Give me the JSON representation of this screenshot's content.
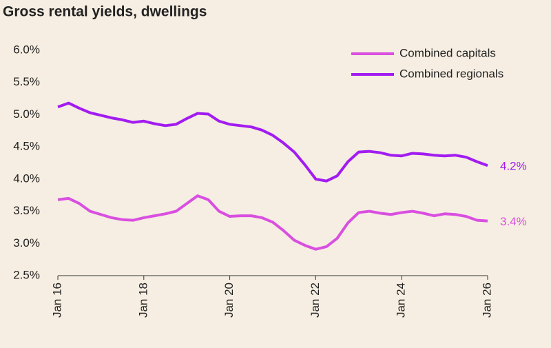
{
  "chart_data": {
    "type": "line",
    "title": "Gross rental yields, dwellings",
    "x": [
      2016,
      2016.25,
      2016.5,
      2016.75,
      2017,
      2017.25,
      2017.5,
      2017.75,
      2018,
      2018.25,
      2018.5,
      2018.75,
      2019,
      2019.25,
      2019.5,
      2019.75,
      2020,
      2020.25,
      2020.5,
      2020.75,
      2021,
      2021.25,
      2021.5,
      2021.75,
      2022,
      2022.25,
      2022.5,
      2022.75,
      2023,
      2023.25,
      2023.5,
      2023.75,
      2024,
      2024.25,
      2024.5,
      2024.75,
      2025,
      2025.25,
      2025.5,
      2025.75,
      2026
    ],
    "series": [
      {
        "name": "Combined capitals",
        "color": "#d94fe0",
        "end_label": "3.4%",
        "values": [
          3.68,
          3.7,
          3.62,
          3.5,
          3.45,
          3.4,
          3.37,
          3.36,
          3.4,
          3.43,
          3.46,
          3.5,
          3.62,
          3.74,
          3.68,
          3.5,
          3.42,
          3.43,
          3.43,
          3.4,
          3.33,
          3.2,
          3.05,
          2.97,
          2.91,
          2.95,
          3.08,
          3.32,
          3.48,
          3.5,
          3.47,
          3.45,
          3.48,
          3.5,
          3.47,
          3.43,
          3.46,
          3.45,
          3.42,
          3.36,
          3.35
        ]
      },
      {
        "name": "Combined regionals",
        "color": "#a21cf0",
        "end_label": "4.2%",
        "values": [
          5.12,
          5.18,
          5.1,
          5.03,
          4.99,
          4.95,
          4.92,
          4.88,
          4.9,
          4.86,
          4.83,
          4.85,
          4.94,
          5.02,
          5.01,
          4.9,
          4.85,
          4.83,
          4.81,
          4.76,
          4.68,
          4.56,
          4.42,
          4.22,
          4.0,
          3.97,
          4.05,
          4.27,
          4.42,
          4.43,
          4.41,
          4.37,
          4.36,
          4.4,
          4.39,
          4.37,
          4.36,
          4.37,
          4.34,
          4.27,
          4.21
        ]
      }
    ],
    "xlim": [
      2016,
      2026
    ],
    "xticks": [
      {
        "value": 2016,
        "label": "Jan 16"
      },
      {
        "value": 2018,
        "label": "Jan 18"
      },
      {
        "value": 2020,
        "label": "Jan 20"
      },
      {
        "value": 2022,
        "label": "Jan 22"
      },
      {
        "value": 2024,
        "label": "Jan 24"
      },
      {
        "value": 2026,
        "label": "Jan 26"
      }
    ],
    "ylim": [
      2.5,
      6
    ],
    "yticks": [
      {
        "value": 2.5,
        "label": "2.5%"
      },
      {
        "value": 3,
        "label": "3.0%"
      },
      {
        "value": 3.5,
        "label": "3.5%"
      },
      {
        "value": 4,
        "label": "4.0%"
      },
      {
        "value": 4.5,
        "label": "4.5%"
      },
      {
        "value": 5,
        "label": "5.0%"
      },
      {
        "value": 5.5,
        "label": "5.5%"
      },
      {
        "value": 6,
        "label": "6.0%"
      }
    ],
    "grid": false,
    "legend": "top-right"
  }
}
